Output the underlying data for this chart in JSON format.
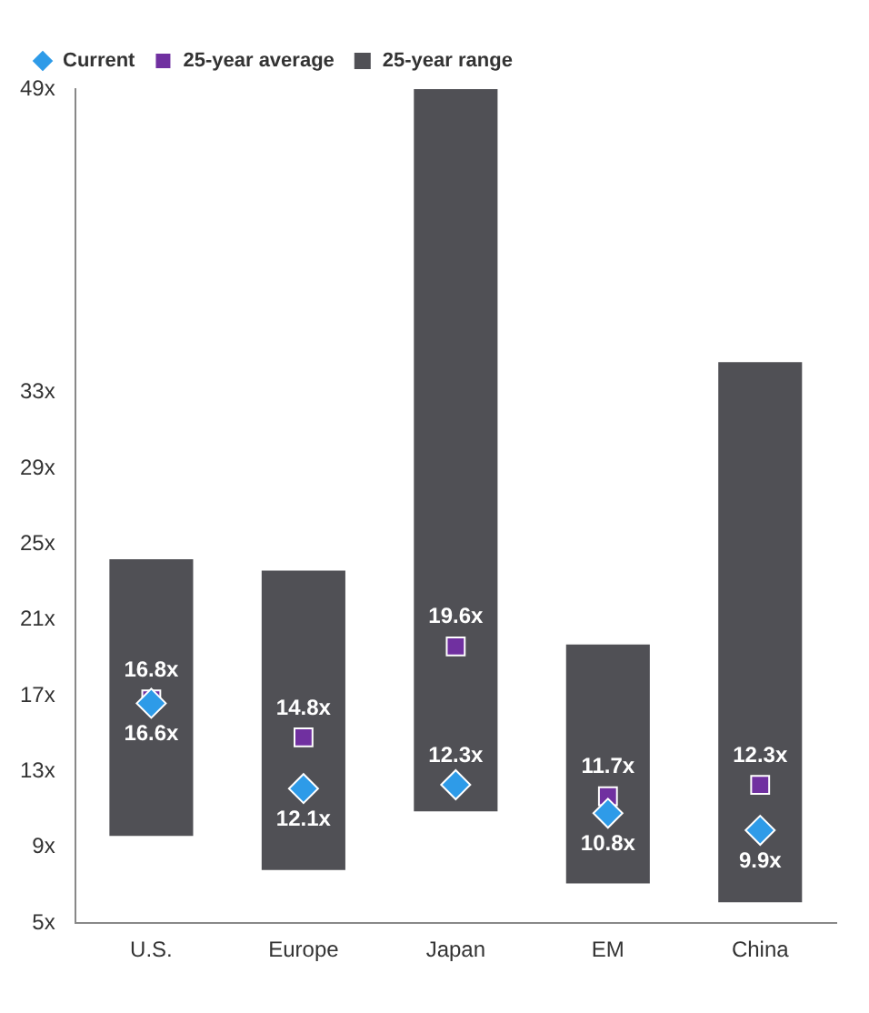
{
  "chart_data": {
    "type": "bar",
    "categories": [
      "U.S.",
      "Europe",
      "Japan",
      "EM",
      "China"
    ],
    "series": [
      {
        "name": "Current",
        "type": "scatter",
        "marker": "diamond",
        "color": "#2e9be8",
        "values": [
          16.6,
          12.1,
          12.3,
          10.8,
          9.9
        ],
        "value_labels": [
          "16.6x",
          "12.1x",
          "12.3x",
          "10.8x",
          "9.9x"
        ]
      },
      {
        "name": "25-year range",
        "color": "#505055",
        "base": [
          9.6,
          7.8,
          10.9,
          7.1,
          6.1
        ],
        "values": [
          14.6,
          15.8,
          38.1,
          12.6,
          28.5
        ]
      },
      {
        "name": "25-year average",
        "type": "scatter",
        "marker": "square",
        "color": "#7030a0",
        "values": [
          16.8,
          14.8,
          19.6,
          11.7,
          12.3
        ],
        "value_labels": [
          "16.8x",
          "14.8x",
          "19.6x",
          "11.7x",
          "12.3x"
        ]
      }
    ],
    "ylim": [
      5,
      49
    ],
    "yticks": [
      {
        "value": 5,
        "label": "5x"
      },
      {
        "value": 9,
        "label": "9x"
      },
      {
        "value": 13,
        "label": "13x"
      },
      {
        "value": 17,
        "label": "17x"
      },
      {
        "value": 21,
        "label": "21x"
      },
      {
        "value": 25,
        "label": "25x"
      },
      {
        "value": 29,
        "label": "29x"
      },
      {
        "value": 33,
        "label": "33x"
      },
      {
        "value": 49,
        "label": "49x"
      }
    ],
    "grid": false,
    "legend": "top left"
  }
}
